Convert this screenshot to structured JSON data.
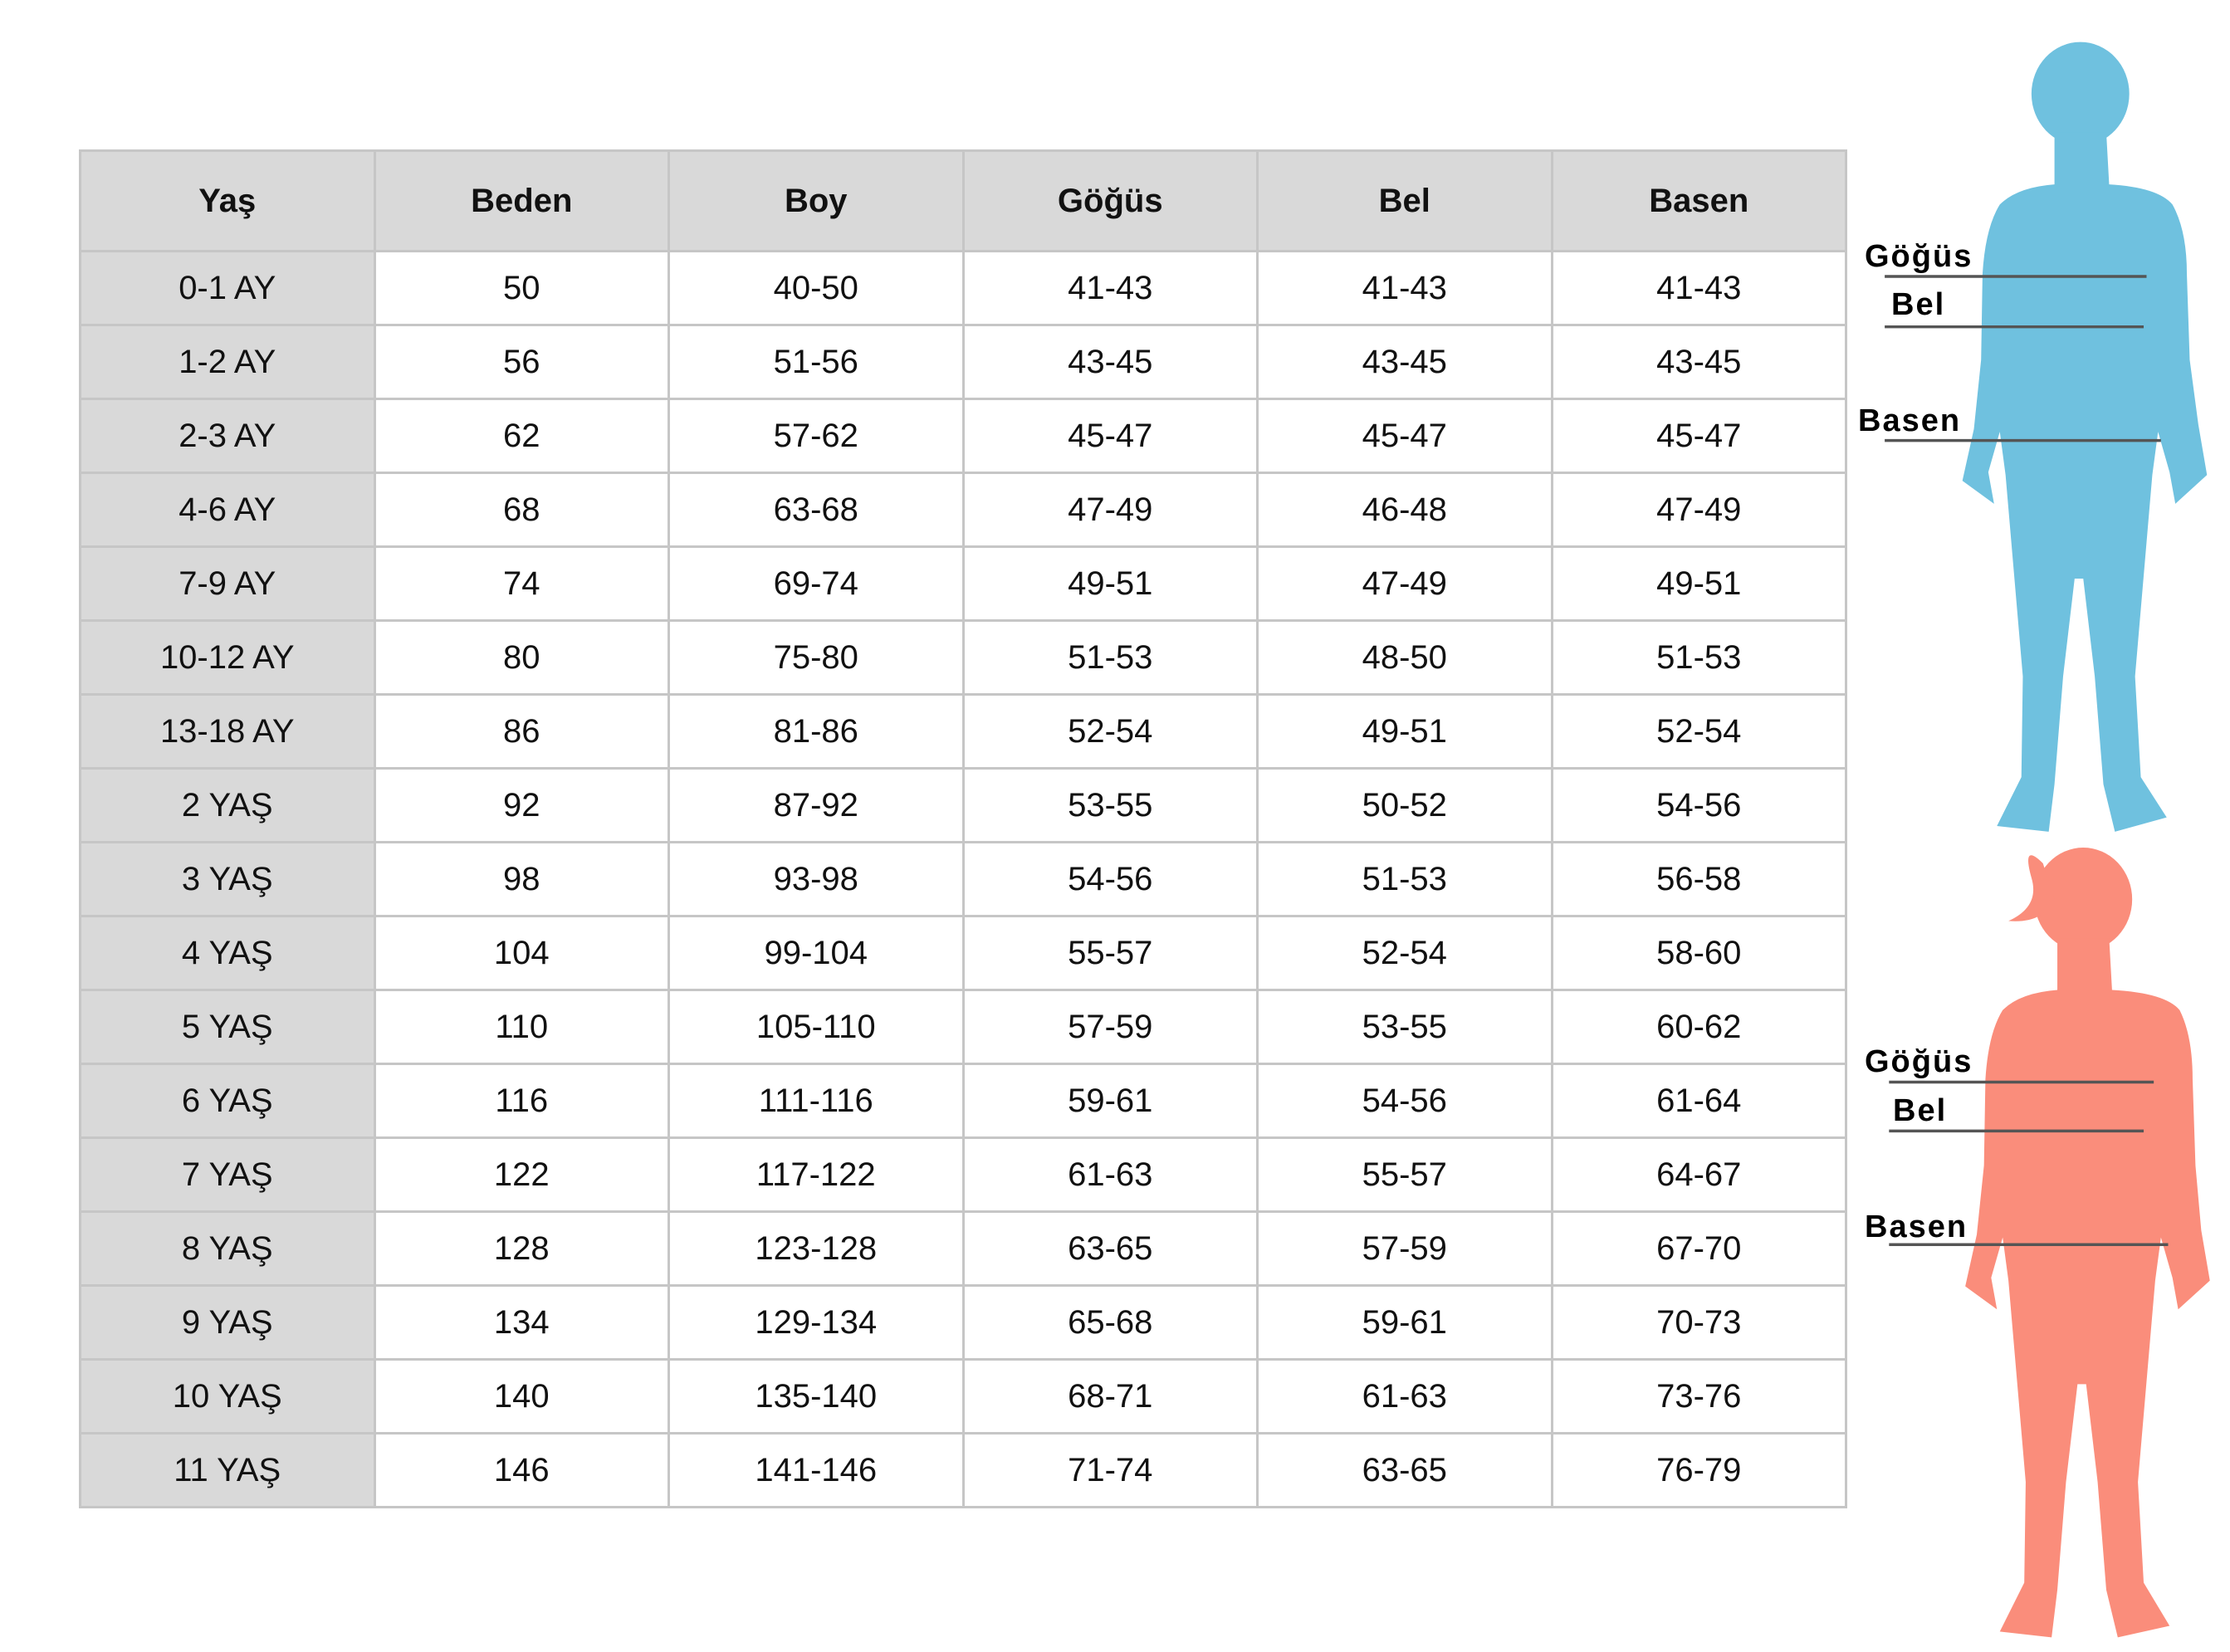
{
  "table": {
    "headers": [
      "Yaş",
      "Beden",
      "Boy",
      "Göğüs",
      "Bel",
      "Basen"
    ],
    "rows": [
      [
        "0-1 AY",
        "50",
        "40-50",
        "41-43",
        "41-43",
        "41-43"
      ],
      [
        "1-2 AY",
        "56",
        "51-56",
        "43-45",
        "43-45",
        "43-45"
      ],
      [
        "2-3 AY",
        "62",
        "57-62",
        "45-47",
        "45-47",
        "45-47"
      ],
      [
        "4-6 AY",
        "68",
        "63-68",
        "47-49",
        "46-48",
        "47-49"
      ],
      [
        "7-9 AY",
        "74",
        "69-74",
        "49-51",
        "47-49",
        "49-51"
      ],
      [
        "10-12 AY",
        "80",
        "75-80",
        "51-53",
        "48-50",
        "51-53"
      ],
      [
        "13-18 AY",
        "86",
        "81-86",
        "52-54",
        "49-51",
        "52-54"
      ],
      [
        "2 YAŞ",
        "92",
        "87-92",
        "53-55",
        "50-52",
        "54-56"
      ],
      [
        "3 YAŞ",
        "98",
        "93-98",
        "54-56",
        "51-53",
        "56-58"
      ],
      [
        "4 YAŞ",
        "104",
        "99-104",
        "55-57",
        "52-54",
        "58-60"
      ],
      [
        "5 YAŞ",
        "110",
        "105-110",
        "57-59",
        "53-55",
        "60-62"
      ],
      [
        "6 YAŞ",
        "116",
        "111-116",
        "59-61",
        "54-56",
        "61-64"
      ],
      [
        "7 YAŞ",
        "122",
        "117-122",
        "61-63",
        "55-57",
        "64-67"
      ],
      [
        "8 YAŞ",
        "128",
        "123-128",
        "63-65",
        "57-59",
        "67-70"
      ],
      [
        "9 YAŞ",
        "134",
        "129-134",
        "65-68",
        "59-61",
        "70-73"
      ],
      [
        "10 YAŞ",
        "140",
        "135-140",
        "68-71",
        "61-63",
        "73-76"
      ],
      [
        "11 YAŞ",
        "146",
        "141-146",
        "71-74",
        "63-65",
        "76-79"
      ]
    ]
  },
  "figures": {
    "boy": {
      "color": "#6fc1df",
      "labels": {
        "chest": "Göğüs",
        "waist": "Bel",
        "hip": "Basen"
      }
    },
    "girl": {
      "color": "#fa8d7b",
      "labels": {
        "chest": "Göğüs",
        "waist": "Bel",
        "hip": "Basen"
      }
    }
  },
  "colors": {
    "header_bg": "#d9d9d9",
    "grid": "#c6c6c6"
  }
}
